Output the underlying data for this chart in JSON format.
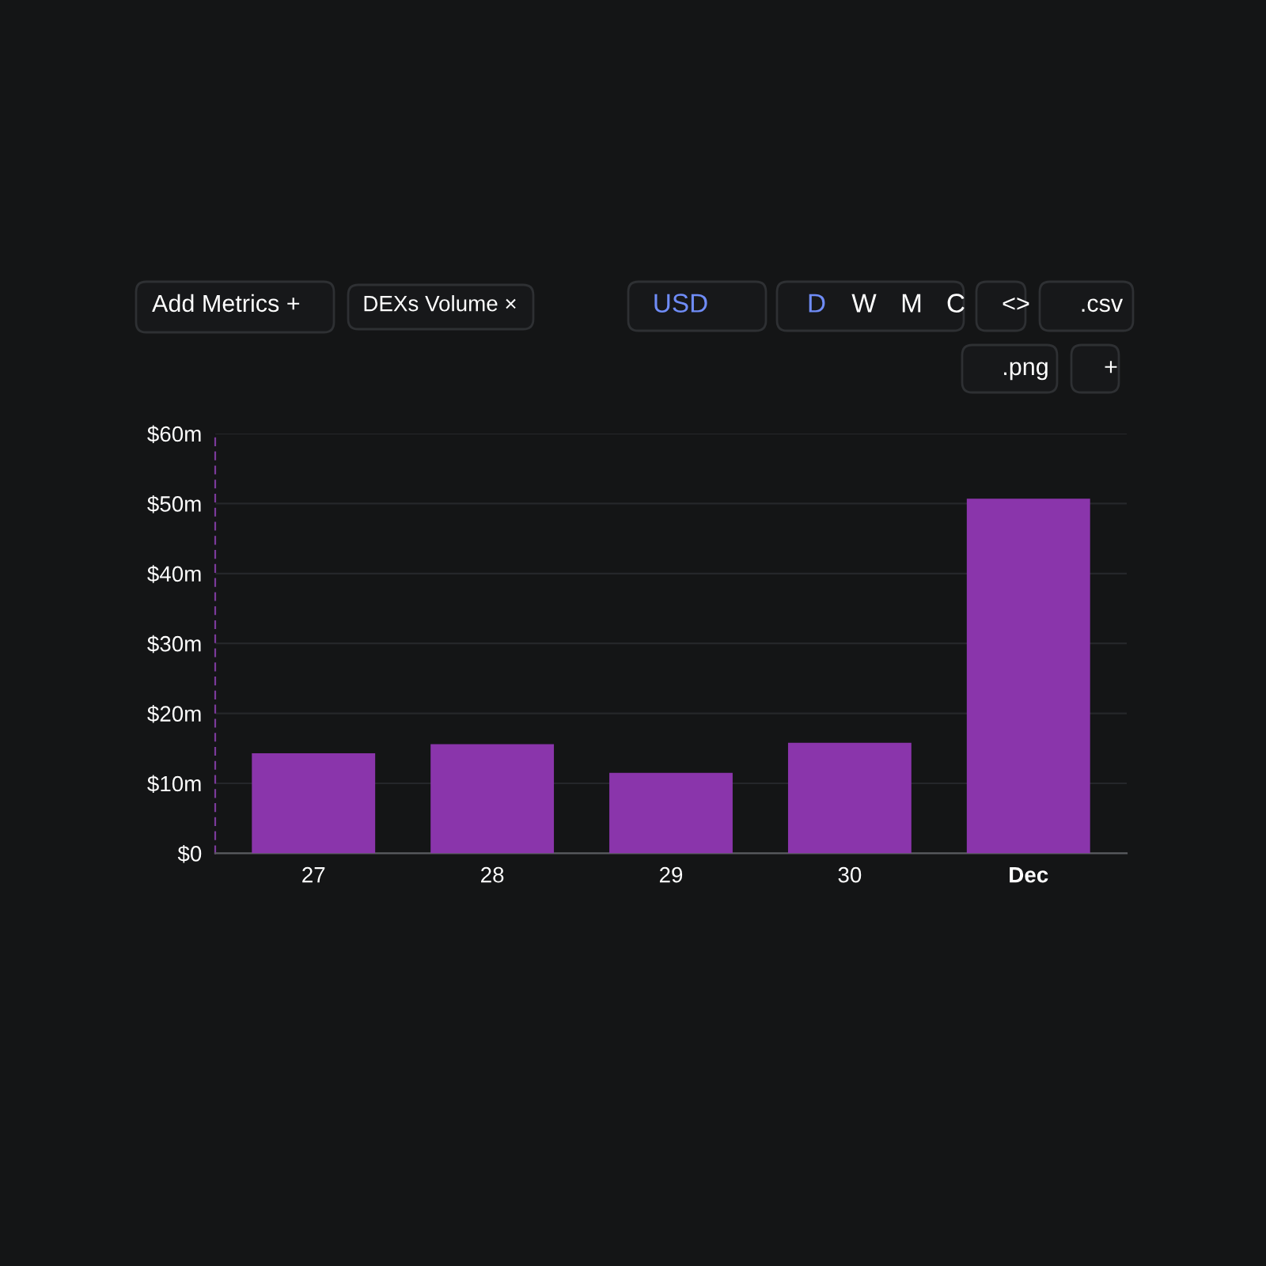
{
  "chart_data": {
    "type": "bar",
    "categories": [
      "27",
      "28",
      "29",
      "30",
      "Dec"
    ],
    "values": [
      14.3,
      15.6,
      11.5,
      15.8,
      50.7
    ],
    "color": "#8a35ab",
    "ylim": [
      0,
      60
    ],
    "yticks": [
      {
        "value": 0,
        "label": "$0"
      },
      {
        "value": 10,
        "label": "$10m"
      },
      {
        "value": 20,
        "label": "$20m"
      },
      {
        "value": 30,
        "label": "$30m"
      },
      {
        "value": 40,
        "label": "$40m"
      },
      {
        "value": 50,
        "label": "$50m"
      },
      {
        "value": 60,
        "label": "$60m"
      }
    ],
    "grid": "y",
    "legend": false,
    "annotations": [
      "Add Metrics +",
      "DEXs Volume ×",
      "USD",
      "D",
      "W",
      "M",
      "C",
      "<>",
      ".csv",
      ".png",
      "+"
    ]
  }
}
